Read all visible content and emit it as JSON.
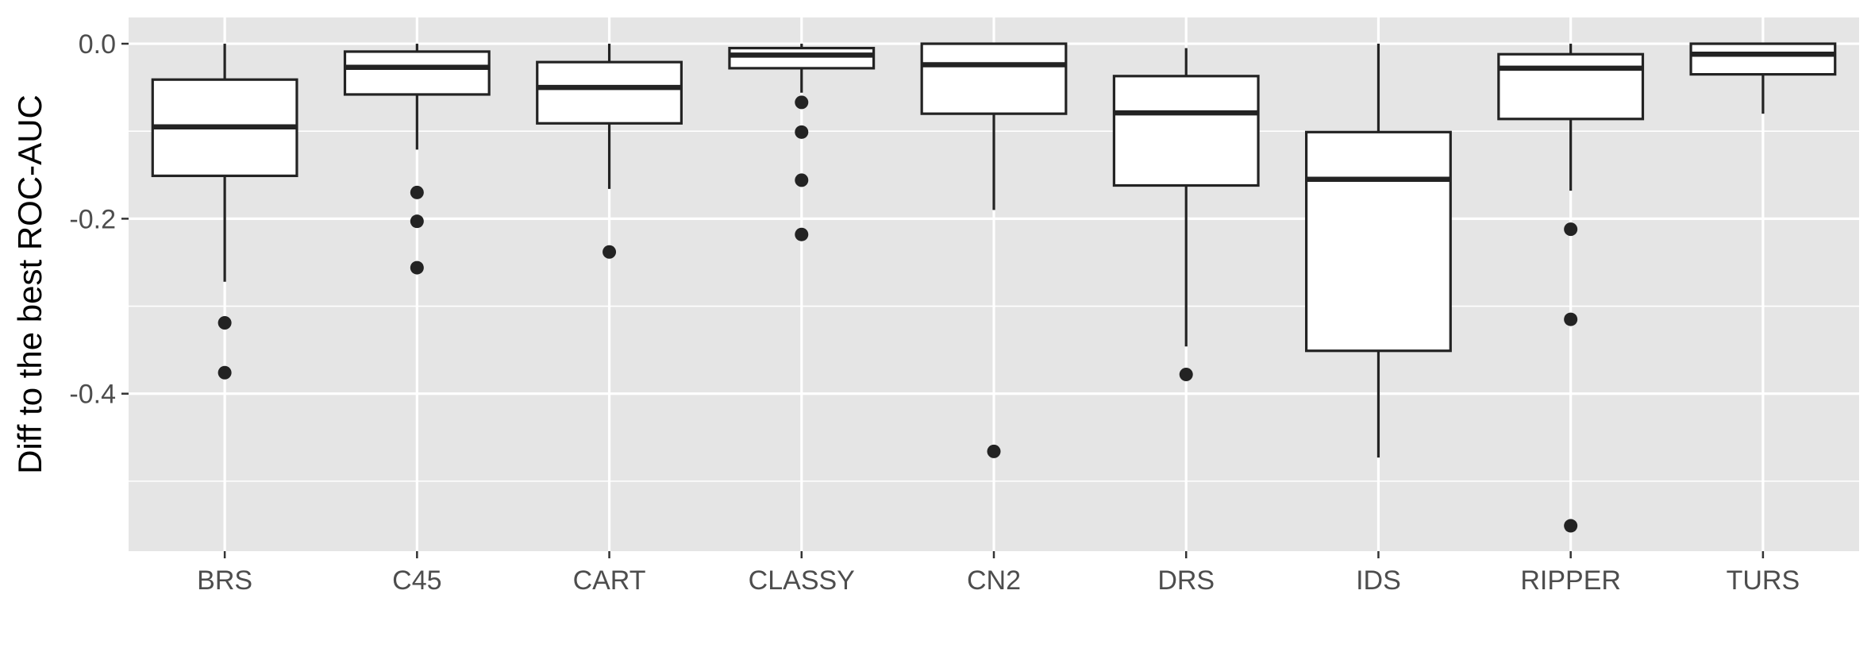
{
  "chart_data": {
    "type": "boxplot",
    "ylabel": "Diff to the best ROC-AUC",
    "xlabel": "",
    "ylim": [
      -0.58,
      0.03
    ],
    "yticks": [
      0.0,
      -0.2,
      -0.4
    ],
    "ytick_labels": [
      "0.0",
      "-0.2",
      "-0.4"
    ],
    "yminor": [
      -0.1,
      -0.3,
      -0.5
    ],
    "grid": true,
    "legend": "none",
    "colors": {
      "panel": "#e5e5e5",
      "grid": "#ffffff",
      "box_fill": "#ffffff",
      "line": "#232323",
      "text": "#4d4d4d"
    },
    "categories": [
      "BRS",
      "C45",
      "CART",
      "CLASSY",
      "CN2",
      "DRS",
      "IDS",
      "RIPPER",
      "TURS"
    ],
    "boxes": [
      {
        "name": "BRS",
        "lower_whisker": -0.272,
        "q1": -0.151,
        "median": -0.095,
        "q3": -0.041,
        "upper_whisker": 0.0,
        "outliers": [
          -0.319,
          -0.376
        ]
      },
      {
        "name": "C45",
        "lower_whisker": -0.121,
        "q1": -0.058,
        "median": -0.027,
        "q3": -0.009,
        "upper_whisker": 0.0,
        "outliers": [
          -0.17,
          -0.203,
          -0.256
        ]
      },
      {
        "name": "CART",
        "lower_whisker": -0.166,
        "q1": -0.091,
        "median": -0.05,
        "q3": -0.021,
        "upper_whisker": 0.0,
        "outliers": [
          -0.238
        ]
      },
      {
        "name": "CLASSY",
        "lower_whisker": -0.056,
        "q1": -0.028,
        "median": -0.013,
        "q3": -0.005,
        "upper_whisker": 0.0,
        "outliers": [
          -0.067,
          -0.101,
          -0.156,
          -0.218
        ]
      },
      {
        "name": "CN2",
        "lower_whisker": -0.19,
        "q1": -0.08,
        "median": -0.024,
        "q3": 0.0,
        "upper_whisker": 0.0,
        "outliers": [
          -0.466
        ]
      },
      {
        "name": "DRS",
        "lower_whisker": -0.346,
        "q1": -0.162,
        "median": -0.079,
        "q3": -0.037,
        "upper_whisker": -0.005,
        "outliers": [
          -0.378
        ]
      },
      {
        "name": "IDS",
        "lower_whisker": -0.473,
        "q1": -0.351,
        "median": -0.155,
        "q3": -0.101,
        "upper_whisker": 0.0,
        "outliers": []
      },
      {
        "name": "RIPPER",
        "lower_whisker": -0.168,
        "q1": -0.086,
        "median": -0.028,
        "q3": -0.012,
        "upper_whisker": 0.0,
        "outliers": [
          -0.212,
          -0.315,
          -0.551
        ]
      },
      {
        "name": "TURS",
        "lower_whisker": -0.08,
        "q1": -0.035,
        "median": -0.012,
        "q3": 0.0,
        "upper_whisker": 0.0,
        "outliers": []
      }
    ]
  }
}
